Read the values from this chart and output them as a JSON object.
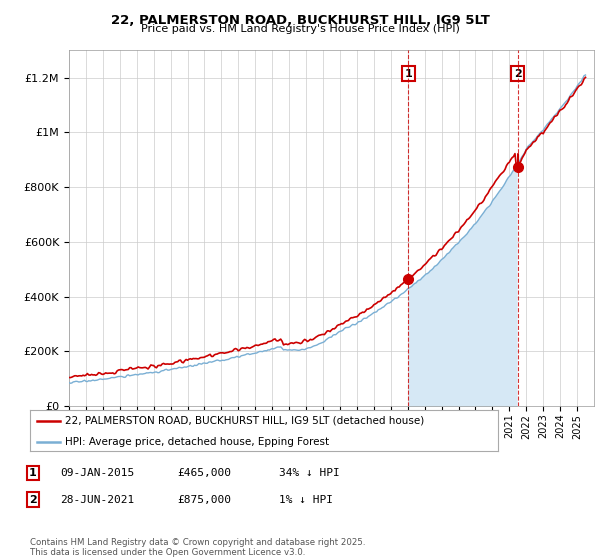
{
  "title": "22, PALMERSTON ROAD, BUCKHURST HILL, IG9 5LT",
  "subtitle": "Price paid vs. HM Land Registry's House Price Index (HPI)",
  "ylim": [
    0,
    1300000
  ],
  "yticks": [
    0,
    200000,
    400000,
    600000,
    800000,
    1000000,
    1200000
  ],
  "ytick_labels": [
    "£0",
    "£200K",
    "£400K",
    "£600K",
    "£800K",
    "£1M",
    "£1.2M"
  ],
  "xmin": 1995,
  "xmax": 2026,
  "hpi_color": "#7aafd4",
  "price_color": "#cc0000",
  "shade_color": "#d6e8f5",
  "sale1_x": 2015.03,
  "sale1_y": 465000,
  "sale1_label": "1",
  "sale2_x": 2021.49,
  "sale2_y": 875000,
  "sale2_label": "2",
  "vline_color": "#cc0000",
  "legend_entries": [
    "22, PALMERSTON ROAD, BUCKHURST HILL, IG9 5LT (detached house)",
    "HPI: Average price, detached house, Epping Forest"
  ],
  "annotation_rows": [
    [
      "1",
      "09-JAN-2015",
      "£465,000",
      "34% ↓ HPI"
    ],
    [
      "2",
      "28-JUN-2021",
      "£875,000",
      "1% ↓ HPI"
    ]
  ],
  "footer": "Contains HM Land Registry data © Crown copyright and database right 2025.\nThis data is licensed under the Open Government Licence v3.0.",
  "background_color": "#ffffff",
  "plot_bg_color": "#ffffff",
  "grid_color": "#cccccc"
}
